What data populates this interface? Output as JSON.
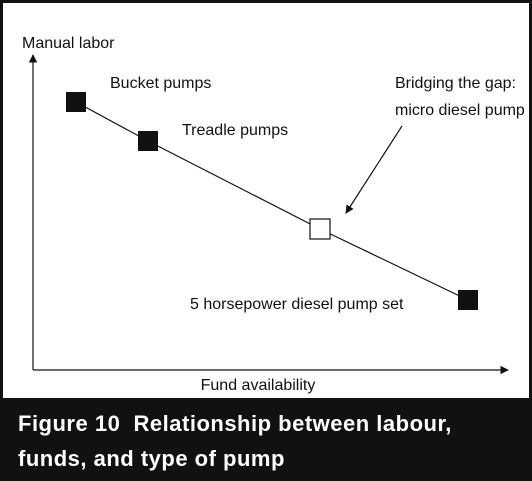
{
  "axes": {
    "y_label": "Manual labor",
    "x_label": "Fund availability"
  },
  "nodes": [
    {
      "label": "Bucket pumps"
    },
    {
      "label": "Treadle pumps"
    },
    {
      "label": [
        "Bridging the gap:",
        "micro diesel pump set"
      ]
    },
    {
      "label": "5 horsepower diesel pump set"
    }
  ],
  "caption": [
    "Figure 10  Relationship between labour,",
    "funds, and type of pump"
  ]
}
